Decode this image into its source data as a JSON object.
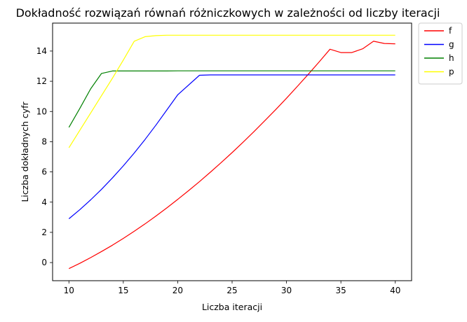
{
  "chart_data": {
    "type": "line",
    "title": "Dokładność rozwiązań równań różniczkowych w zależności od liczby iteracji",
    "xlabel": "Liczba iteracji",
    "ylabel": "Liczba dokładnych cyfr",
    "xlim": [
      8.5,
      41.5
    ],
    "ylim": [
      -1.2,
      15.85
    ],
    "xticks": [
      10,
      15,
      20,
      25,
      30,
      35,
      40
    ],
    "yticks": [
      0,
      2,
      4,
      6,
      8,
      10,
      12,
      14
    ],
    "grid": false,
    "legend_position": "outside-top-right",
    "x": [
      10,
      11,
      12,
      13,
      14,
      15,
      16,
      17,
      18,
      19,
      20,
      21,
      22,
      23,
      24,
      25,
      26,
      27,
      28,
      29,
      30,
      31,
      32,
      33,
      34,
      35,
      36,
      37,
      38,
      39,
      40
    ],
    "series": [
      {
        "name": "f",
        "color": "#ff0000",
        "values": [
          -0.4,
          -0.05,
          0.33,
          0.73,
          1.15,
          1.6,
          2.07,
          2.56,
          3.08,
          3.62,
          4.18,
          4.76,
          5.36,
          5.98,
          6.62,
          7.28,
          7.96,
          8.66,
          9.38,
          10.12,
          10.88,
          11.66,
          12.46,
          13.28,
          14.12,
          13.9,
          13.9,
          14.15,
          14.65,
          14.5,
          14.48
        ]
      },
      {
        "name": "g",
        "color": "#0000ff",
        "values": [
          2.9,
          3.5,
          4.15,
          4.85,
          5.6,
          6.4,
          7.25,
          8.15,
          9.1,
          10.1,
          11.1,
          12.4,
          12.42,
          12.42,
          12.42,
          12.42,
          12.42,
          12.42,
          12.42,
          12.42,
          12.42,
          12.42,
          12.42,
          12.42,
          12.42,
          12.42,
          12.42,
          12.42,
          12.42,
          12.42,
          12.42
        ],
        "x": [
          10,
          11,
          12,
          13,
          14,
          15,
          16,
          17,
          18,
          19,
          20,
          22,
          23,
          24,
          25,
          26,
          27,
          28,
          29,
          30,
          31,
          32,
          33,
          34,
          35,
          36,
          37,
          38,
          39,
          40,
          40
        ]
      },
      {
        "name": "h",
        "color": "#008000",
        "values": [
          8.95,
          10.2,
          11.5,
          12.52,
          12.68,
          12.68,
          12.68,
          12.68,
          12.68,
          12.68,
          12.69,
          12.69,
          12.69,
          12.69,
          12.69,
          12.69,
          12.69,
          12.69,
          12.69,
          12.69,
          12.69,
          12.69,
          12.69,
          12.69,
          12.69,
          12.69,
          12.69,
          12.69,
          12.69,
          12.69,
          12.69
        ]
      },
      {
        "name": "p",
        "color": "#ffff00",
        "values": [
          7.6,
          8.75,
          9.9,
          11.05,
          12.2,
          13.4,
          14.65,
          14.95,
          15.02,
          15.05,
          15.05,
          15.05,
          15.05,
          15.05,
          15.05,
          15.05,
          15.05,
          15.05,
          15.05,
          15.05,
          15.05,
          15.05,
          15.05,
          15.05,
          15.05,
          15.05,
          15.05,
          15.05,
          15.05,
          15.05,
          15.05
        ]
      }
    ]
  }
}
